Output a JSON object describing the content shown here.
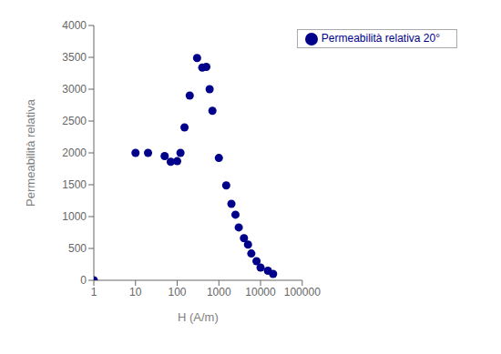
{
  "chart_data": {
    "type": "scatter",
    "x": [
      1,
      10,
      20,
      50,
      70,
      100,
      120,
      150,
      200,
      300,
      400,
      500,
      600,
      700,
      1000,
      1500,
      2000,
      2500,
      3000,
      4000,
      5000,
      6000,
      8000,
      10000,
      15000,
      20000
    ],
    "series": [
      {
        "name": "Permeabilità relativa 20°",
        "color": "#00008B",
        "marker": ".",
        "values": [
          0,
          2000,
          2000,
          1950,
          1860,
          1870,
          2000,
          2400,
          2900,
          3490,
          3340,
          3350,
          3000,
          2660,
          1920,
          1490,
          1200,
          1030,
          830,
          660,
          560,
          420,
          300,
          200,
          150,
          100
        ]
      }
    ],
    "xlabel": "H (A/m)",
    "ylabel": "Permeabilità relativa",
    "xlim": [
      1,
      100000
    ],
    "ylim": [
      0,
      4000
    ],
    "xticks": [
      1,
      10,
      100,
      1000,
      10000,
      100000
    ],
    "yticks": [
      0,
      500,
      1000,
      1500,
      2000,
      2500,
      3000,
      3500,
      4000
    ],
    "log": "x",
    "grid": false,
    "legend": "upper right"
  }
}
